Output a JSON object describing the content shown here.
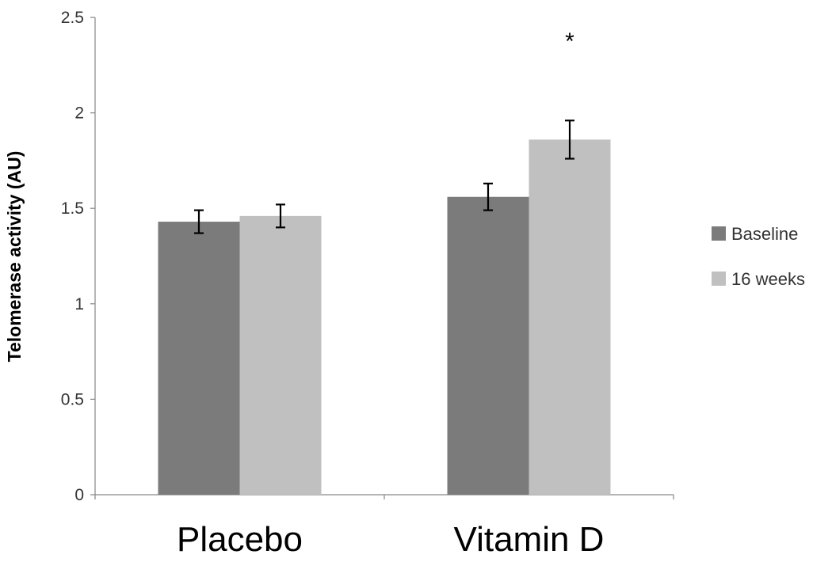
{
  "chart_data": {
    "type": "bar",
    "categories": [
      "Placebo",
      "Vitamin D"
    ],
    "series": [
      {
        "name": "Baseline",
        "color": "#7b7b7b",
        "values": [
          1.43,
          1.56
        ],
        "error": [
          0.06,
          0.07
        ]
      },
      {
        "name": "16 weeks",
        "color": "#c0c0c0",
        "values": [
          1.46,
          1.86
        ],
        "error": [
          0.06,
          0.1
        ]
      }
    ],
    "ylabel": "Telomerase activity (AU)",
    "xlabel": "",
    "ylim": [
      0,
      2.5
    ],
    "yticks": [
      "0",
      "0.5",
      "1",
      "1.5",
      "2",
      "2.5"
    ],
    "grid": false,
    "legend_position": "right",
    "annotations": [
      {
        "text": "*",
        "category": "Vitamin D",
        "series": "16 weeks"
      }
    ]
  }
}
